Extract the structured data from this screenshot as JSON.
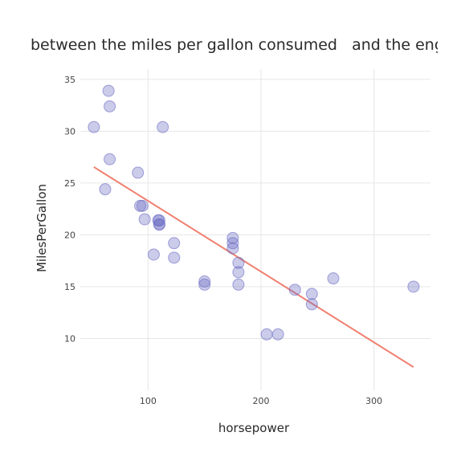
{
  "chart_data": {
    "type": "scatter",
    "title": "between the miles per gallon consumed   and the engine",
    "xlabel": "horsepower",
    "ylabel": "MilesPerGallon",
    "xlim": [
      40,
      350
    ],
    "ylim": [
      5,
      36
    ],
    "xticks": [
      100,
      200,
      300
    ],
    "yticks": [
      10,
      15,
      20,
      25,
      30,
      35
    ],
    "grid": true,
    "point_color": "#6a6ac4",
    "point_fill_opacity": 0.35,
    "line_color": "#f08070",
    "points": [
      {
        "x": 110,
        "y": 21.0
      },
      {
        "x": 110,
        "y": 21.0
      },
      {
        "x": 93,
        "y": 22.8
      },
      {
        "x": 110,
        "y": 21.4
      },
      {
        "x": 175,
        "y": 18.7
      },
      {
        "x": 105,
        "y": 18.1
      },
      {
        "x": 245,
        "y": 14.3
      },
      {
        "x": 62,
        "y": 24.4
      },
      {
        "x": 95,
        "y": 22.8
      },
      {
        "x": 123,
        "y": 19.2
      },
      {
        "x": 123,
        "y": 17.8
      },
      {
        "x": 180,
        "y": 16.4
      },
      {
        "x": 180,
        "y": 17.3
      },
      {
        "x": 180,
        "y": 15.2
      },
      {
        "x": 205,
        "y": 10.4
      },
      {
        "x": 215,
        "y": 10.4
      },
      {
        "x": 230,
        "y": 14.7
      },
      {
        "x": 66,
        "y": 32.4
      },
      {
        "x": 52,
        "y": 30.4
      },
      {
        "x": 65,
        "y": 33.9
      },
      {
        "x": 97,
        "y": 21.5
      },
      {
        "x": 150,
        "y": 15.5
      },
      {
        "x": 150,
        "y": 15.2
      },
      {
        "x": 245,
        "y": 13.3
      },
      {
        "x": 175,
        "y": 19.2
      },
      {
        "x": 66,
        "y": 27.3
      },
      {
        "x": 91,
        "y": 26.0
      },
      {
        "x": 113,
        "y": 30.4
      },
      {
        "x": 264,
        "y": 15.8
      },
      {
        "x": 175,
        "y": 19.7
      },
      {
        "x": 335,
        "y": 15.0
      },
      {
        "x": 109,
        "y": 21.4
      }
    ],
    "regression_line": {
      "x": [
        52,
        335
      ],
      "y": [
        26.55,
        7.24
      ]
    }
  }
}
